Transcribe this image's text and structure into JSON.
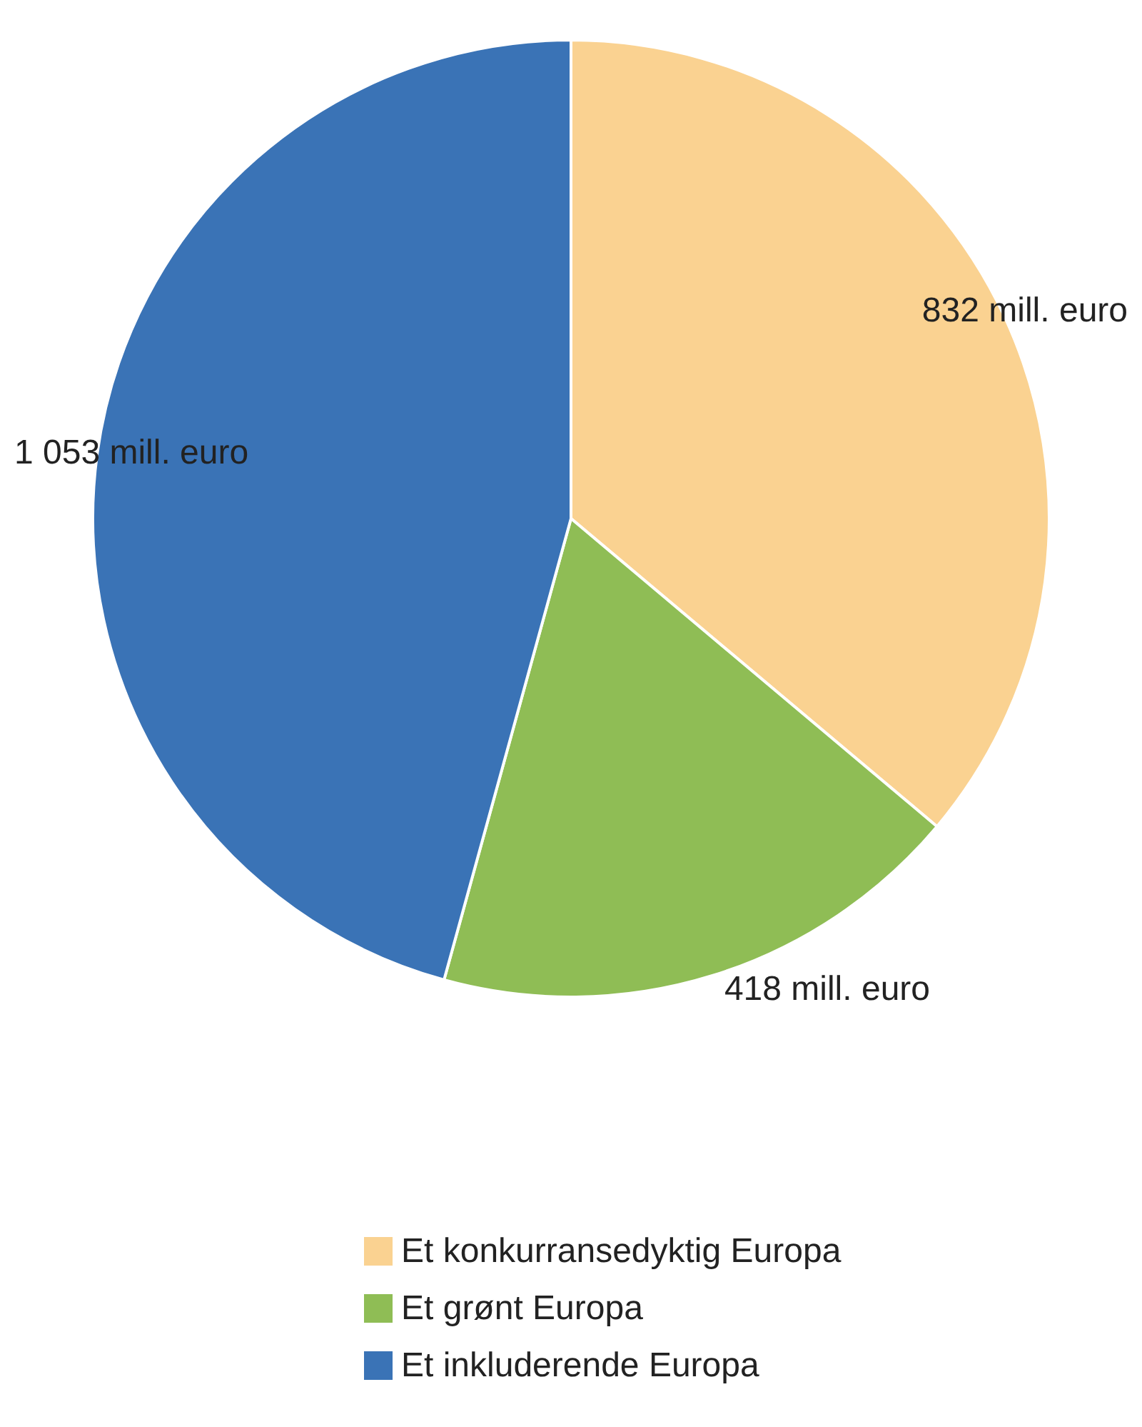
{
  "chart_data": {
    "type": "pie",
    "categories": [
      "Et konkurransedyktig Europa",
      "Et grønt Europa",
      "Et inkluderende Europa"
    ],
    "values": [
      832,
      418,
      1053
    ],
    "colors": [
      "#fad291",
      "#8fbd55",
      "#3a73b6"
    ],
    "value_labels": [
      "832 mill. euro",
      "418 mill. euro",
      "1 053 mill. euro"
    ],
    "legend": "bottom"
  }
}
